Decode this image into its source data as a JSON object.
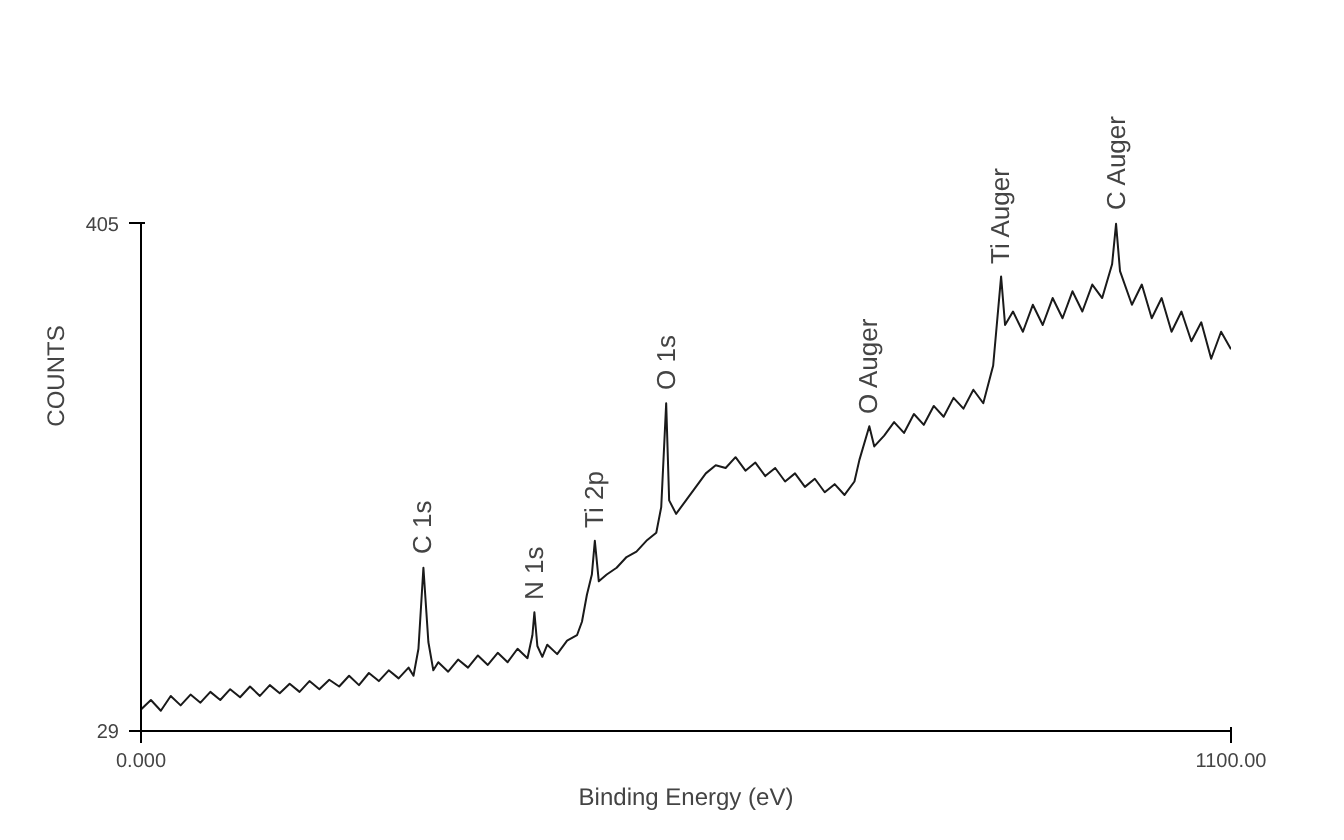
{
  "chart_data": {
    "type": "line",
    "xlabel": "Binding Energy (eV)",
    "ylabel": "COUNTS",
    "x": [
      0,
      10,
      20,
      30,
      40,
      50,
      60,
      70,
      80,
      90,
      100,
      110,
      120,
      130,
      140,
      150,
      160,
      170,
      180,
      190,
      200,
      210,
      220,
      230,
      240,
      250,
      260,
      270,
      275,
      280,
      285,
      290,
      295,
      300,
      310,
      320,
      330,
      340,
      350,
      360,
      370,
      380,
      390,
      395,
      397,
      400,
      405,
      410,
      420,
      430,
      440,
      445,
      450,
      455,
      458,
      462,
      470,
      480,
      490,
      500,
      510,
      520,
      525,
      530,
      533,
      540,
      550,
      560,
      570,
      580,
      590,
      600,
      610,
      620,
      630,
      640,
      650,
      660,
      670,
      680,
      690,
      700,
      710,
      720,
      725,
      735,
      740,
      750,
      760,
      770,
      780,
      790,
      800,
      810,
      820,
      830,
      840,
      850,
      860,
      868,
      872,
      880,
      890,
      900,
      910,
      920,
      930,
      940,
      950,
      960,
      970,
      980,
      984,
      988,
      1000,
      1010,
      1020,
      1030,
      1040,
      1050,
      1060,
      1070,
      1080,
      1090,
      1100
    ],
    "series": [
      {
        "color": "#1a1a1a",
        "values": [
          45,
          52,
          44,
          55,
          48,
          56,
          50,
          58,
          52,
          60,
          54,
          62,
          55,
          63,
          57,
          64,
          58,
          66,
          60,
          67,
          62,
          70,
          63,
          72,
          66,
          74,
          68,
          76,
          70,
          90,
          150,
          95,
          74,
          80,
          73,
          82,
          76,
          85,
          78,
          87,
          80,
          90,
          83,
          100,
          117,
          92,
          84,
          93,
          86,
          96,
          100,
          110,
          130,
          145,
          170,
          140,
          145,
          150,
          158,
          162,
          170,
          176,
          195,
          272,
          200,
          190,
          200,
          210,
          220,
          226,
          224,
          232,
          222,
          228,
          218,
          224,
          214,
          220,
          210,
          216,
          206,
          212,
          204,
          214,
          230,
          255,
          240,
          248,
          258,
          250,
          264,
          256,
          270,
          262,
          276,
          268,
          282,
          272,
          300,
          366,
          330,
          340,
          325,
          345,
          330,
          350,
          335,
          355,
          340,
          360,
          350,
          375,
          405,
          370,
          345,
          360,
          335,
          350,
          325,
          340,
          318,
          332,
          305,
          325,
          312
        ]
      }
    ],
    "xlim": [
      0,
      1100
    ],
    "ylim": [
      29,
      405
    ],
    "xticks": [
      {
        "value": 0,
        "label": "0.000"
      },
      {
        "value": 1100,
        "label": "1100.00"
      }
    ],
    "yticks": [
      29,
      405
    ],
    "line_style": "solid",
    "marker": "none",
    "annotations": [
      {
        "text": "C 1s",
        "x": 285,
        "y": 150
      },
      {
        "text": "N 1s",
        "x": 397,
        "y": 117
      },
      {
        "text": "Ti 2p",
        "x": 458,
        "y": 170
      },
      {
        "text": "O 1s",
        "x": 530,
        "y": 272
      },
      {
        "text": "O Auger",
        "x": 735,
        "y": 255
      },
      {
        "text": "Ti Auger",
        "x": 868,
        "y": 366
      },
      {
        "text": "C Auger",
        "x": 984,
        "y": 405
      }
    ]
  }
}
